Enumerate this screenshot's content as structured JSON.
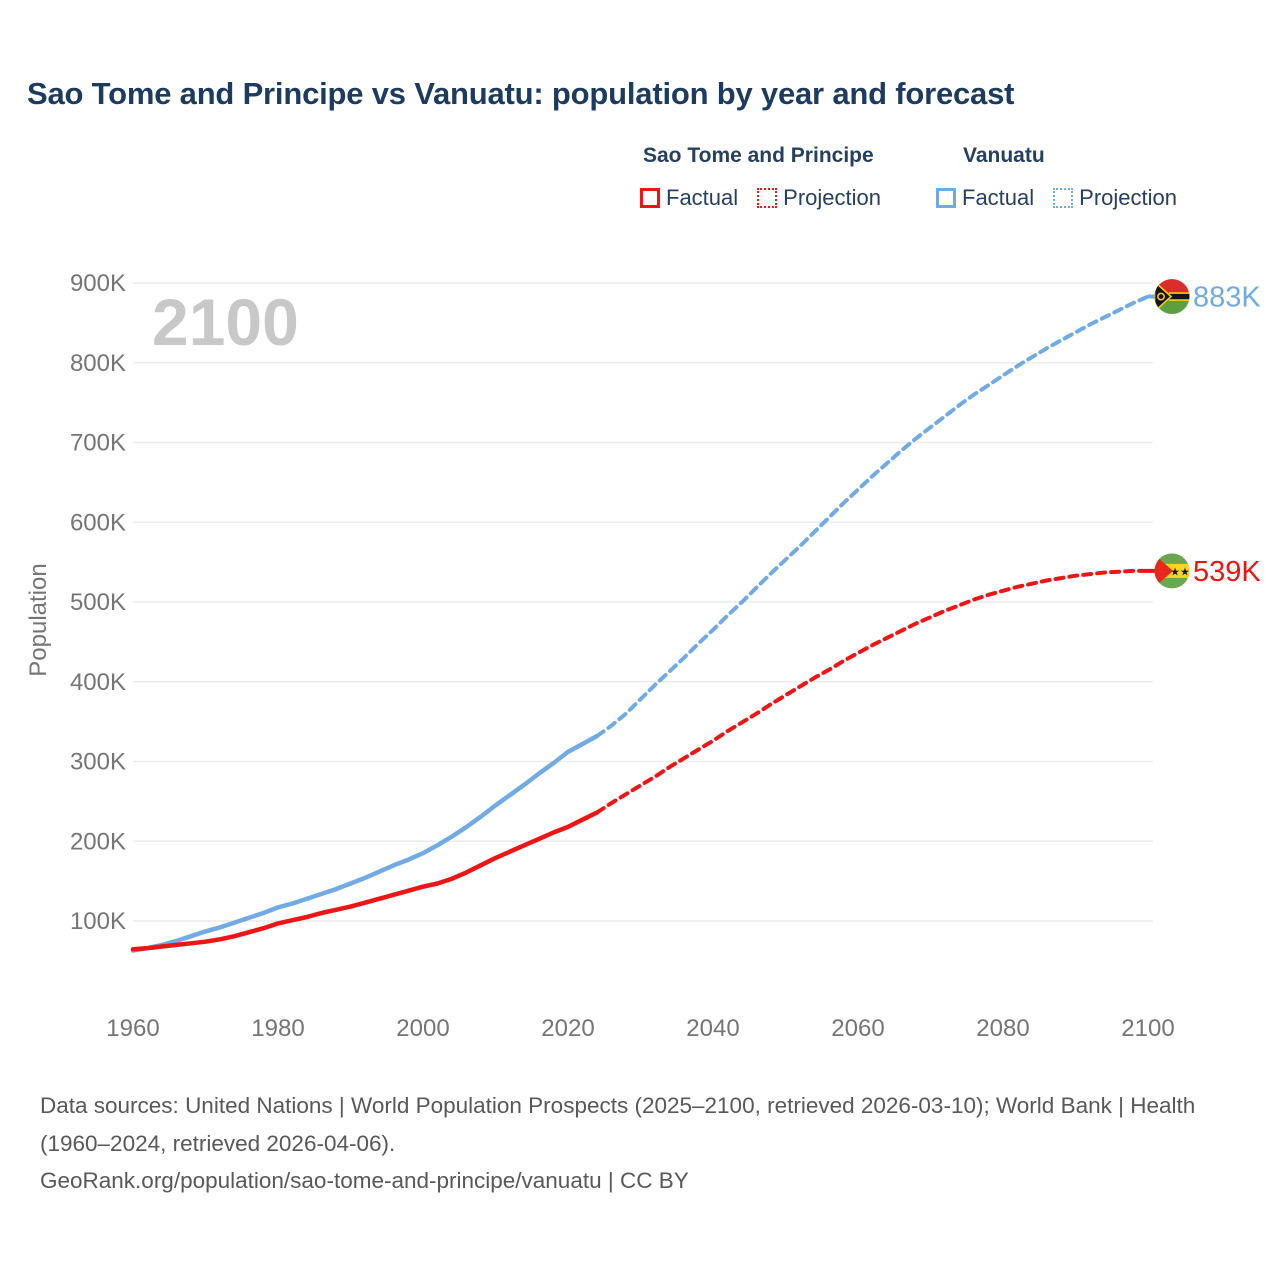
{
  "title": "Sao Tome and Principe vs Vanuatu: population by year and forecast",
  "colors": {
    "red": "#ee1516",
    "blue": "#72abe3",
    "title_text": "#1d3b5e",
    "legend_text": "#26405f",
    "axis_text": "#757575",
    "footer_text": "#58585a",
    "watermark_text": "#c8c8c8",
    "gridline": "#ececec",
    "vanuatu_flag": {
      "red": "#dd2c2c",
      "green": "#5d9e42",
      "black": "#151515",
      "yellow": "#fdce12"
    },
    "sao_tome_flag": {
      "green": "#6aa84f",
      "yellow": "#ffd322",
      "red": "#e8281e",
      "black": "#1a1a1a"
    }
  },
  "legend": {
    "groups": [
      {
        "label": "Sao Tome and Principe",
        "color": "#ee1516",
        "items": [
          {
            "label": "Factual",
            "style": "solid"
          },
          {
            "label": "Projection",
            "style": "dotted"
          }
        ]
      },
      {
        "label": "Vanuatu",
        "color": "#72abe3",
        "items": [
          {
            "label": "Factual",
            "style": "solid"
          },
          {
            "label": "Projection",
            "style": "dotted"
          }
        ]
      }
    ]
  },
  "chart_data": {
    "type": "line",
    "title": "Sao Tome and Principe vs Vanuatu: population by year and forecast",
    "xlabel": "",
    "ylabel": "Population",
    "watermark": "2100",
    "units": "thousands",
    "grid": "horizontal",
    "xlim": [
      1957,
      2104
    ],
    "ylim": [
      40,
      940
    ],
    "x_ticks": [
      1960,
      1980,
      2000,
      2020,
      2040,
      2060,
      2080,
      2100
    ],
    "y_ticks": [
      {
        "value": 100,
        "label": "100K"
      },
      {
        "value": 200,
        "label": "200K"
      },
      {
        "value": 300,
        "label": "300K"
      },
      {
        "value": 400,
        "label": "400K"
      },
      {
        "value": 500,
        "label": "500K"
      },
      {
        "value": 600,
        "label": "600K"
      },
      {
        "value": 700,
        "label": "700K"
      },
      {
        "value": 800,
        "label": "800K"
      },
      {
        "value": 900,
        "label": "900K"
      }
    ],
    "series": [
      {
        "name": "Vanuatu Factual",
        "color": "#72abe3",
        "style": "solid",
        "points": [
          [
            1960,
            63
          ],
          [
            1962,
            66
          ],
          [
            1964,
            70
          ],
          [
            1966,
            75
          ],
          [
            1968,
            81
          ],
          [
            1970,
            87
          ],
          [
            1972,
            92
          ],
          [
            1974,
            98
          ],
          [
            1976,
            104
          ],
          [
            1978,
            110
          ],
          [
            1980,
            117
          ],
          [
            1982,
            122
          ],
          [
            1984,
            128
          ],
          [
            1986,
            134
          ],
          [
            1988,
            140
          ],
          [
            1990,
            147
          ],
          [
            1992,
            154
          ],
          [
            1994,
            162
          ],
          [
            1996,
            170
          ],
          [
            1998,
            177
          ],
          [
            2000,
            185
          ],
          [
            2002,
            195
          ],
          [
            2004,
            206
          ],
          [
            2006,
            218
          ],
          [
            2008,
            231
          ],
          [
            2010,
            245
          ],
          [
            2012,
            258
          ],
          [
            2014,
            271
          ],
          [
            2016,
            285
          ],
          [
            2018,
            298
          ],
          [
            2020,
            312
          ],
          [
            2022,
            322
          ],
          [
            2024,
            332
          ]
        ]
      },
      {
        "name": "Vanuatu Projection",
        "color": "#72abe3",
        "style": "dashed",
        "points": [
          [
            2024,
            332
          ],
          [
            2026,
            345
          ],
          [
            2028,
            360
          ],
          [
            2030,
            378
          ],
          [
            2032,
            396
          ],
          [
            2034,
            413
          ],
          [
            2036,
            430
          ],
          [
            2038,
            448
          ],
          [
            2040,
            465
          ],
          [
            2042,
            483
          ],
          [
            2044,
            500
          ],
          [
            2046,
            518
          ],
          [
            2048,
            536
          ],
          [
            2050,
            553
          ],
          [
            2052,
            570
          ],
          [
            2054,
            588
          ],
          [
            2056,
            606
          ],
          [
            2058,
            624
          ],
          [
            2060,
            641
          ],
          [
            2062,
            658
          ],
          [
            2064,
            674
          ],
          [
            2066,
            690
          ],
          [
            2068,
            705
          ],
          [
            2070,
            719
          ],
          [
            2072,
            733
          ],
          [
            2074,
            747
          ],
          [
            2076,
            760
          ],
          [
            2078,
            772
          ],
          [
            2080,
            784
          ],
          [
            2082,
            796
          ],
          [
            2084,
            807
          ],
          [
            2086,
            818
          ],
          [
            2088,
            828
          ],
          [
            2090,
            838
          ],
          [
            2092,
            848
          ],
          [
            2094,
            857
          ],
          [
            2096,
            866
          ],
          [
            2098,
            875
          ],
          [
            2100,
            883
          ]
        ]
      },
      {
        "name": "Sao Tome and Principe Factual",
        "color": "#ee1516",
        "style": "solid",
        "points": [
          [
            1960,
            64.5
          ],
          [
            1962,
            66
          ],
          [
            1964,
            68
          ],
          [
            1966,
            70
          ],
          [
            1968,
            72
          ],
          [
            1970,
            74
          ],
          [
            1972,
            77
          ],
          [
            1974,
            81
          ],
          [
            1976,
            86
          ],
          [
            1978,
            91
          ],
          [
            1980,
            97
          ],
          [
            1982,
            101
          ],
          [
            1984,
            105
          ],
          [
            1986,
            110
          ],
          [
            1988,
            114
          ],
          [
            1990,
            118
          ],
          [
            1992,
            123
          ],
          [
            1994,
            128
          ],
          [
            1996,
            133
          ],
          [
            1998,
            138
          ],
          [
            2000,
            143
          ],
          [
            2002,
            147
          ],
          [
            2004,
            153
          ],
          [
            2006,
            161
          ],
          [
            2008,
            170
          ],
          [
            2010,
            179
          ],
          [
            2012,
            187
          ],
          [
            2014,
            195
          ],
          [
            2016,
            203
          ],
          [
            2018,
            211
          ],
          [
            2020,
            218
          ],
          [
            2022,
            227
          ],
          [
            2024,
            236
          ]
        ]
      },
      {
        "name": "Sao Tome and Principe Projection",
        "color": "#ee1516",
        "style": "dashed",
        "points": [
          [
            2024,
            236
          ],
          [
            2026,
            248
          ],
          [
            2028,
            259
          ],
          [
            2030,
            270
          ],
          [
            2032,
            281
          ],
          [
            2034,
            293
          ],
          [
            2036,
            304
          ],
          [
            2038,
            315
          ],
          [
            2040,
            326
          ],
          [
            2042,
            338
          ],
          [
            2044,
            349
          ],
          [
            2046,
            360
          ],
          [
            2048,
            372
          ],
          [
            2050,
            383
          ],
          [
            2052,
            394
          ],
          [
            2054,
            405
          ],
          [
            2056,
            415
          ],
          [
            2058,
            426
          ],
          [
            2060,
            436
          ],
          [
            2062,
            446
          ],
          [
            2064,
            455
          ],
          [
            2066,
            464
          ],
          [
            2068,
            473
          ],
          [
            2070,
            481
          ],
          [
            2072,
            489
          ],
          [
            2074,
            496
          ],
          [
            2076,
            503
          ],
          [
            2078,
            509
          ],
          [
            2080,
            514
          ],
          [
            2082,
            519
          ],
          [
            2084,
            523
          ],
          [
            2086,
            527
          ],
          [
            2088,
            530
          ],
          [
            2090,
            533
          ],
          [
            2092,
            535
          ],
          [
            2094,
            537
          ],
          [
            2096,
            538
          ],
          [
            2098,
            539
          ],
          [
            2100,
            539
          ]
        ]
      }
    ],
    "end_markers": [
      {
        "series": "Vanuatu Projection",
        "label": "883K",
        "value": 883,
        "year": 2100,
        "color": "#72abe3",
        "flag": "vanuatu"
      },
      {
        "series": "Sao Tome and Principe Projection",
        "label": "539K",
        "value": 539,
        "year": 2100,
        "color": "#ee1516",
        "flag": "sao-tome-and-principe"
      }
    ],
    "legend_position": "top-right"
  },
  "footer": {
    "sources": "Data sources: United Nations | World Population Prospects (2025–2100, retrieved 2026-03-10); World Bank | Health (1960–2024, retrieved 2026-04-06).",
    "link": "GeoRank.org/population/sao-tome-and-principe/vanuatu | CC BY"
  }
}
